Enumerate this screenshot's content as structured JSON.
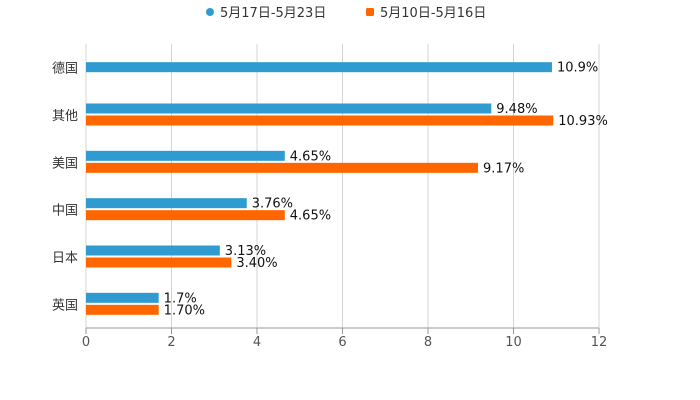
{
  "chart_data": {
    "type": "bar",
    "orientation": "horizontal",
    "categories": [
      "德国",
      "其他",
      "美国",
      "中国",
      "日本",
      "英国"
    ],
    "series": [
      {
        "name": "5月17日-5月23日",
        "color": "#2f9bd0",
        "values": [
          10.9,
          9.48,
          4.65,
          3.76,
          3.13,
          1.7
        ],
        "labels": [
          "10.9%",
          "9.48%",
          "4.65%",
          "3.76%",
          "3.13%",
          "1.7%"
        ]
      },
      {
        "name": "5月10日-5月16日",
        "color": "#ff6600",
        "values": [
          null,
          10.93,
          9.17,
          4.65,
          3.4,
          1.7
        ],
        "labels": [
          "",
          "10.93%",
          "9.17%",
          "4.65%",
          "3.40%",
          "1.70%"
        ]
      }
    ],
    "xlim": [
      0,
      12
    ],
    "xticks": [
      "0",
      "2",
      "4",
      "6",
      "8",
      "10",
      "12"
    ],
    "grid": true,
    "legend_position": "top-center",
    "title": "",
    "xlabel": "",
    "ylabel": ""
  }
}
